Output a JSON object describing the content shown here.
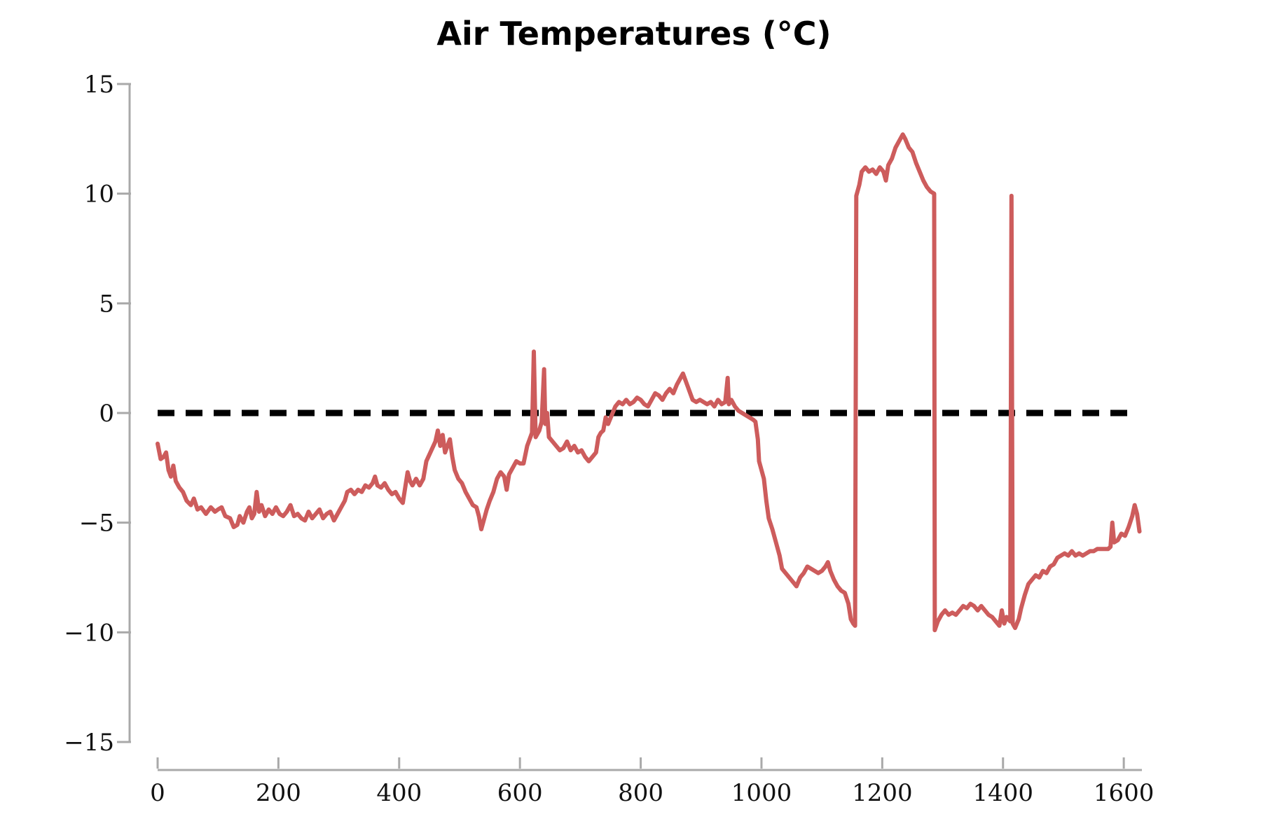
{
  "chart_data": {
    "type": "line",
    "title": "Air Temperatures (°C)",
    "xlabel": "",
    "ylabel": "",
    "xlim": [
      0,
      1630
    ],
    "ylim": [
      -15,
      15
    ],
    "x_ticks": [
      0,
      200,
      400,
      600,
      800,
      1000,
      1200,
      1400,
      1600
    ],
    "x_tick_labels": [
      "0",
      "200",
      "400",
      "600",
      "800",
      "1000",
      "1200",
      "1400",
      "1600"
    ],
    "y_ticks": [
      -15,
      -10,
      -5,
      0,
      5,
      10,
      15
    ],
    "y_tick_labels": [
      "−15",
      "−10",
      "−5",
      "0",
      "5",
      "10",
      "15"
    ],
    "grid": false,
    "colors": {
      "series": "#cd5c5c",
      "reference": "#000000",
      "axis": "#a9a9a9"
    },
    "reference_line": {
      "y": 0,
      "x_range": [
        0,
        1610
      ],
      "style": "dashed"
    },
    "series": [
      {
        "values": [
          [
            0,
            -1.4
          ],
          [
            5,
            -2.1
          ],
          [
            10,
            -2.0
          ],
          [
            14,
            -1.8
          ],
          [
            18,
            -2.6
          ],
          [
            22,
            -2.9
          ],
          [
            26,
            -2.4
          ],
          [
            30,
            -3.1
          ],
          [
            36,
            -3.4
          ],
          [
            42,
            -3.6
          ],
          [
            48,
            -4.0
          ],
          [
            55,
            -4.2
          ],
          [
            60,
            -3.9
          ],
          [
            66,
            -4.4
          ],
          [
            72,
            -4.3
          ],
          [
            80,
            -4.6
          ],
          [
            88,
            -4.3
          ],
          [
            95,
            -4.5
          ],
          [
            100,
            -4.4
          ],
          [
            106,
            -4.3
          ],
          [
            112,
            -4.7
          ],
          [
            120,
            -4.8
          ],
          [
            126,
            -5.2
          ],
          [
            132,
            -5.1
          ],
          [
            136,
            -4.7
          ],
          [
            142,
            -5.0
          ],
          [
            148,
            -4.5
          ],
          [
            152,
            -4.3
          ],
          [
            156,
            -4.8
          ],
          [
            160,
            -4.6
          ],
          [
            164,
            -3.6
          ],
          [
            168,
            -4.5
          ],
          [
            172,
            -4.2
          ],
          [
            178,
            -4.7
          ],
          [
            184,
            -4.4
          ],
          [
            190,
            -4.6
          ],
          [
            196,
            -4.3
          ],
          [
            202,
            -4.6
          ],
          [
            208,
            -4.7
          ],
          [
            214,
            -4.5
          ],
          [
            220,
            -4.2
          ],
          [
            226,
            -4.7
          ],
          [
            232,
            -4.6
          ],
          [
            238,
            -4.8
          ],
          [
            244,
            -4.9
          ],
          [
            250,
            -4.5
          ],
          [
            256,
            -4.8
          ],
          [
            262,
            -4.6
          ],
          [
            268,
            -4.4
          ],
          [
            274,
            -4.8
          ],
          [
            280,
            -4.6
          ],
          [
            286,
            -4.5
          ],
          [
            292,
            -4.9
          ],
          [
            298,
            -4.6
          ],
          [
            304,
            -4.3
          ],
          [
            310,
            -4.0
          ],
          [
            314,
            -3.6
          ],
          [
            320,
            -3.5
          ],
          [
            326,
            -3.7
          ],
          [
            332,
            -3.5
          ],
          [
            338,
            -3.6
          ],
          [
            344,
            -3.3
          ],
          [
            350,
            -3.4
          ],
          [
            356,
            -3.2
          ],
          [
            360,
            -2.9
          ],
          [
            364,
            -3.3
          ],
          [
            370,
            -3.4
          ],
          [
            376,
            -3.2
          ],
          [
            382,
            -3.5
          ],
          [
            388,
            -3.7
          ],
          [
            394,
            -3.6
          ],
          [
            400,
            -3.9
          ],
          [
            406,
            -4.1
          ],
          [
            410,
            -3.4
          ],
          [
            414,
            -2.7
          ],
          [
            418,
            -3.1
          ],
          [
            422,
            -3.3
          ],
          [
            428,
            -3.0
          ],
          [
            434,
            -3.3
          ],
          [
            440,
            -3.0
          ],
          [
            445,
            -2.2
          ],
          [
            450,
            -1.9
          ],
          [
            455,
            -1.6
          ],
          [
            460,
            -1.3
          ],
          [
            464,
            -0.8
          ],
          [
            468,
            -1.5
          ],
          [
            472,
            -1.0
          ],
          [
            476,
            -1.8
          ],
          [
            480,
            -1.5
          ],
          [
            484,
            -1.2
          ],
          [
            488,
            -2.0
          ],
          [
            492,
            -2.6
          ],
          [
            498,
            -3.0
          ],
          [
            504,
            -3.2
          ],
          [
            510,
            -3.6
          ],
          [
            516,
            -3.9
          ],
          [
            522,
            -4.2
          ],
          [
            528,
            -4.3
          ],
          [
            532,
            -4.7
          ],
          [
            536,
            -5.3
          ],
          [
            540,
            -4.9
          ],
          [
            545,
            -4.4
          ],
          [
            550,
            -4.0
          ],
          [
            556,
            -3.6
          ],
          [
            562,
            -3.0
          ],
          [
            568,
            -2.7
          ],
          [
            574,
            -2.9
          ],
          [
            578,
            -3.5
          ],
          [
            582,
            -2.8
          ],
          [
            588,
            -2.5
          ],
          [
            594,
            -2.2
          ],
          [
            600,
            -2.3
          ],
          [
            606,
            -2.3
          ],
          [
            612,
            -1.5
          ],
          [
            616,
            -1.2
          ],
          [
            620,
            -0.9
          ],
          [
            623,
            2.8
          ],
          [
            626,
            -1.1
          ],
          [
            632,
            -0.8
          ],
          [
            636,
            -0.4
          ],
          [
            640,
            2.0
          ],
          [
            642,
            -0.5
          ],
          [
            645,
            0.0
          ],
          [
            648,
            -1.1
          ],
          [
            654,
            -1.3
          ],
          [
            660,
            -1.5
          ],
          [
            666,
            -1.7
          ],
          [
            672,
            -1.6
          ],
          [
            678,
            -1.3
          ],
          [
            684,
            -1.7
          ],
          [
            690,
            -1.5
          ],
          [
            696,
            -1.8
          ],
          [
            702,
            -1.7
          ],
          [
            708,
            -2.0
          ],
          [
            714,
            -2.2
          ],
          [
            720,
            -2.0
          ],
          [
            726,
            -1.8
          ],
          [
            730,
            -1.1
          ],
          [
            734,
            -0.9
          ],
          [
            738,
            -0.8
          ],
          [
            742,
            -0.2
          ],
          [
            746,
            -0.5
          ],
          [
            752,
            -0.1
          ],
          [
            758,
            0.3
          ],
          [
            764,
            0.5
          ],
          [
            770,
            0.4
          ],
          [
            776,
            0.6
          ],
          [
            782,
            0.4
          ],
          [
            788,
            0.5
          ],
          [
            794,
            0.7
          ],
          [
            800,
            0.6
          ],
          [
            806,
            0.4
          ],
          [
            812,
            0.3
          ],
          [
            818,
            0.6
          ],
          [
            824,
            0.9
          ],
          [
            830,
            0.8
          ],
          [
            836,
            0.6
          ],
          [
            842,
            0.9
          ],
          [
            848,
            1.1
          ],
          [
            854,
            0.9
          ],
          [
            860,
            1.3
          ],
          [
            866,
            1.6
          ],
          [
            870,
            1.8
          ],
          [
            874,
            1.5
          ],
          [
            878,
            1.2
          ],
          [
            882,
            0.9
          ],
          [
            886,
            0.6
          ],
          [
            892,
            0.5
          ],
          [
            898,
            0.6
          ],
          [
            904,
            0.5
          ],
          [
            910,
            0.4
          ],
          [
            916,
            0.5
          ],
          [
            922,
            0.3
          ],
          [
            928,
            0.6
          ],
          [
            934,
            0.4
          ],
          [
            940,
            0.5
          ],
          [
            944,
            1.6
          ],
          [
            946,
            0.4
          ],
          [
            950,
            0.6
          ],
          [
            956,
            0.3
          ],
          [
            962,
            0.1
          ],
          [
            968,
            0.0
          ],
          [
            974,
            -0.1
          ],
          [
            980,
            -0.2
          ],
          [
            986,
            -0.3
          ],
          [
            990,
            -0.4
          ],
          [
            994,
            -1.2
          ],
          [
            996,
            -2.2
          ],
          [
            1000,
            -2.6
          ],
          [
            1004,
            -3.0
          ],
          [
            1008,
            -4.0
          ],
          [
            1012,
            -4.8
          ],
          [
            1018,
            -5.3
          ],
          [
            1024,
            -5.9
          ],
          [
            1030,
            -6.5
          ],
          [
            1034,
            -7.1
          ],
          [
            1040,
            -7.3
          ],
          [
            1046,
            -7.5
          ],
          [
            1052,
            -7.7
          ],
          [
            1058,
            -7.9
          ],
          [
            1064,
            -7.5
          ],
          [
            1070,
            -7.3
          ],
          [
            1076,
            -7.0
          ],
          [
            1082,
            -7.1
          ],
          [
            1088,
            -7.2
          ],
          [
            1094,
            -7.3
          ],
          [
            1100,
            -7.2
          ],
          [
            1106,
            -7.0
          ],
          [
            1110,
            -6.8
          ],
          [
            1114,
            -7.2
          ],
          [
            1120,
            -7.6
          ],
          [
            1126,
            -7.9
          ],
          [
            1132,
            -8.1
          ],
          [
            1138,
            -8.2
          ],
          [
            1144,
            -8.7
          ],
          [
            1148,
            -9.4
          ],
          [
            1152,
            -9.6
          ],
          [
            1155,
            -9.7
          ],
          [
            1157,
            9.9
          ],
          [
            1162,
            10.4
          ],
          [
            1166,
            11.0
          ],
          [
            1172,
            11.2
          ],
          [
            1178,
            11.0
          ],
          [
            1184,
            11.1
          ],
          [
            1190,
            10.9
          ],
          [
            1196,
            11.2
          ],
          [
            1202,
            11.0
          ],
          [
            1206,
            10.6
          ],
          [
            1210,
            11.3
          ],
          [
            1216,
            11.6
          ],
          [
            1222,
            12.1
          ],
          [
            1228,
            12.4
          ],
          [
            1234,
            12.7
          ],
          [
            1238,
            12.5
          ],
          [
            1244,
            12.1
          ],
          [
            1250,
            11.9
          ],
          [
            1256,
            11.4
          ],
          [
            1262,
            11.0
          ],
          [
            1268,
            10.6
          ],
          [
            1274,
            10.3
          ],
          [
            1280,
            10.1
          ],
          [
            1286,
            10.0
          ],
          [
            1287,
            -9.9
          ],
          [
            1292,
            -9.5
          ],
          [
            1298,
            -9.2
          ],
          [
            1304,
            -9.0
          ],
          [
            1310,
            -9.2
          ],
          [
            1316,
            -9.1
          ],
          [
            1322,
            -9.2
          ],
          [
            1328,
            -9.0
          ],
          [
            1334,
            -8.8
          ],
          [
            1340,
            -8.9
          ],
          [
            1346,
            -8.7
          ],
          [
            1352,
            -8.8
          ],
          [
            1358,
            -9.0
          ],
          [
            1364,
            -8.8
          ],
          [
            1370,
            -9.0
          ],
          [
            1376,
            -9.2
          ],
          [
            1382,
            -9.3
          ],
          [
            1388,
            -9.5
          ],
          [
            1394,
            -9.7
          ],
          [
            1398,
            -9.0
          ],
          [
            1402,
            -9.6
          ],
          [
            1406,
            -9.3
          ],
          [
            1412,
            -9.5
          ],
          [
            1414,
            9.9
          ],
          [
            1416,
            -9.6
          ],
          [
            1420,
            -9.8
          ],
          [
            1426,
            -9.4
          ],
          [
            1430,
            -8.9
          ],
          [
            1436,
            -8.3
          ],
          [
            1442,
            -7.8
          ],
          [
            1448,
            -7.6
          ],
          [
            1454,
            -7.4
          ],
          [
            1460,
            -7.5
          ],
          [
            1466,
            -7.2
          ],
          [
            1472,
            -7.3
          ],
          [
            1478,
            -7.0
          ],
          [
            1484,
            -6.9
          ],
          [
            1490,
            -6.6
          ],
          [
            1496,
            -6.5
          ],
          [
            1502,
            -6.4
          ],
          [
            1508,
            -6.5
          ],
          [
            1514,
            -6.3
          ],
          [
            1520,
            -6.5
          ],
          [
            1526,
            -6.4
          ],
          [
            1532,
            -6.5
          ],
          [
            1538,
            -6.4
          ],
          [
            1544,
            -6.3
          ],
          [
            1550,
            -6.3
          ],
          [
            1556,
            -6.2
          ],
          [
            1562,
            -6.2
          ],
          [
            1568,
            -6.2
          ],
          [
            1574,
            -6.2
          ],
          [
            1578,
            -6.1
          ],
          [
            1581,
            -5.0
          ],
          [
            1584,
            -5.9
          ],
          [
            1590,
            -5.8
          ],
          [
            1596,
            -5.5
          ],
          [
            1602,
            -5.6
          ],
          [
            1608,
            -5.2
          ],
          [
            1614,
            -4.7
          ],
          [
            1618,
            -4.2
          ],
          [
            1622,
            -4.6
          ],
          [
            1626,
            -5.4
          ]
        ]
      }
    ]
  }
}
